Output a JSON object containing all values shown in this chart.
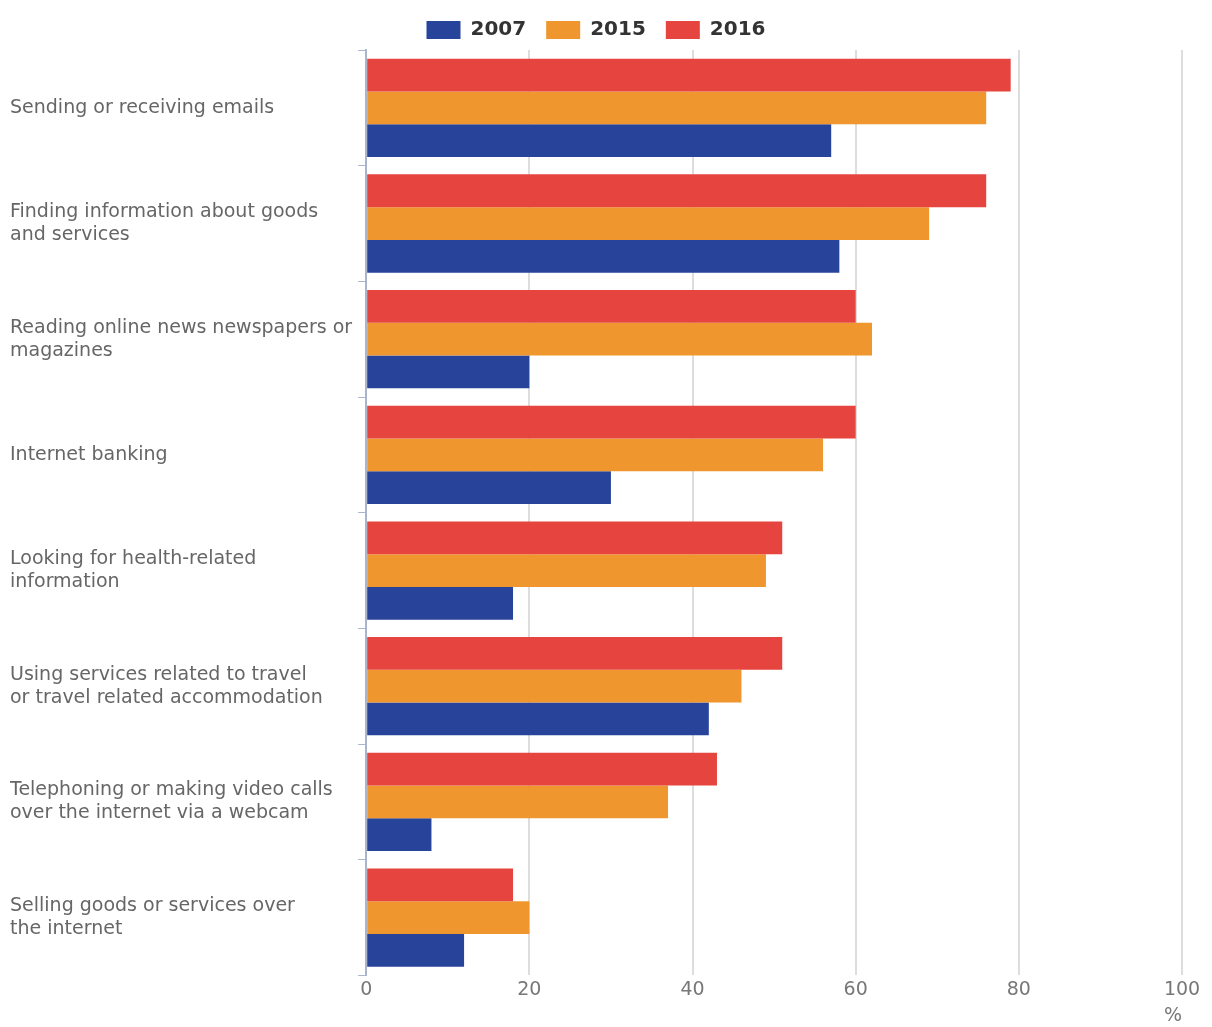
{
  "chart_data": {
    "type": "bar",
    "orientation": "horizontal",
    "xlabel": "%",
    "categories": [
      "Sending or receiving emails",
      "Finding information about goods and services",
      "Reading online news newspapers or magazines",
      "Internet banking",
      "Looking for health-related information",
      "Using services related to travel or travel related accommodation",
      "Telephoning or making video calls over the internet via a webcam",
      "Selling goods or services over the internet"
    ],
    "series": [
      {
        "name": "2007",
        "color": "#27449a",
        "values": [
          57,
          58,
          20,
          30,
          18,
          42,
          8,
          12
        ]
      },
      {
        "name": "2015",
        "color": "#f0962f",
        "values": [
          76,
          69,
          62,
          56,
          49,
          46,
          37,
          20
        ]
      },
      {
        "name": "2016",
        "color": "#e6443f",
        "values": [
          79,
          76,
          60,
          60,
          51,
          51,
          43,
          18
        ]
      }
    ],
    "xlim": [
      0,
      100
    ],
    "xticks": [
      0,
      20,
      40,
      60,
      80,
      100
    ],
    "grid": "x",
    "legend": "top"
  }
}
